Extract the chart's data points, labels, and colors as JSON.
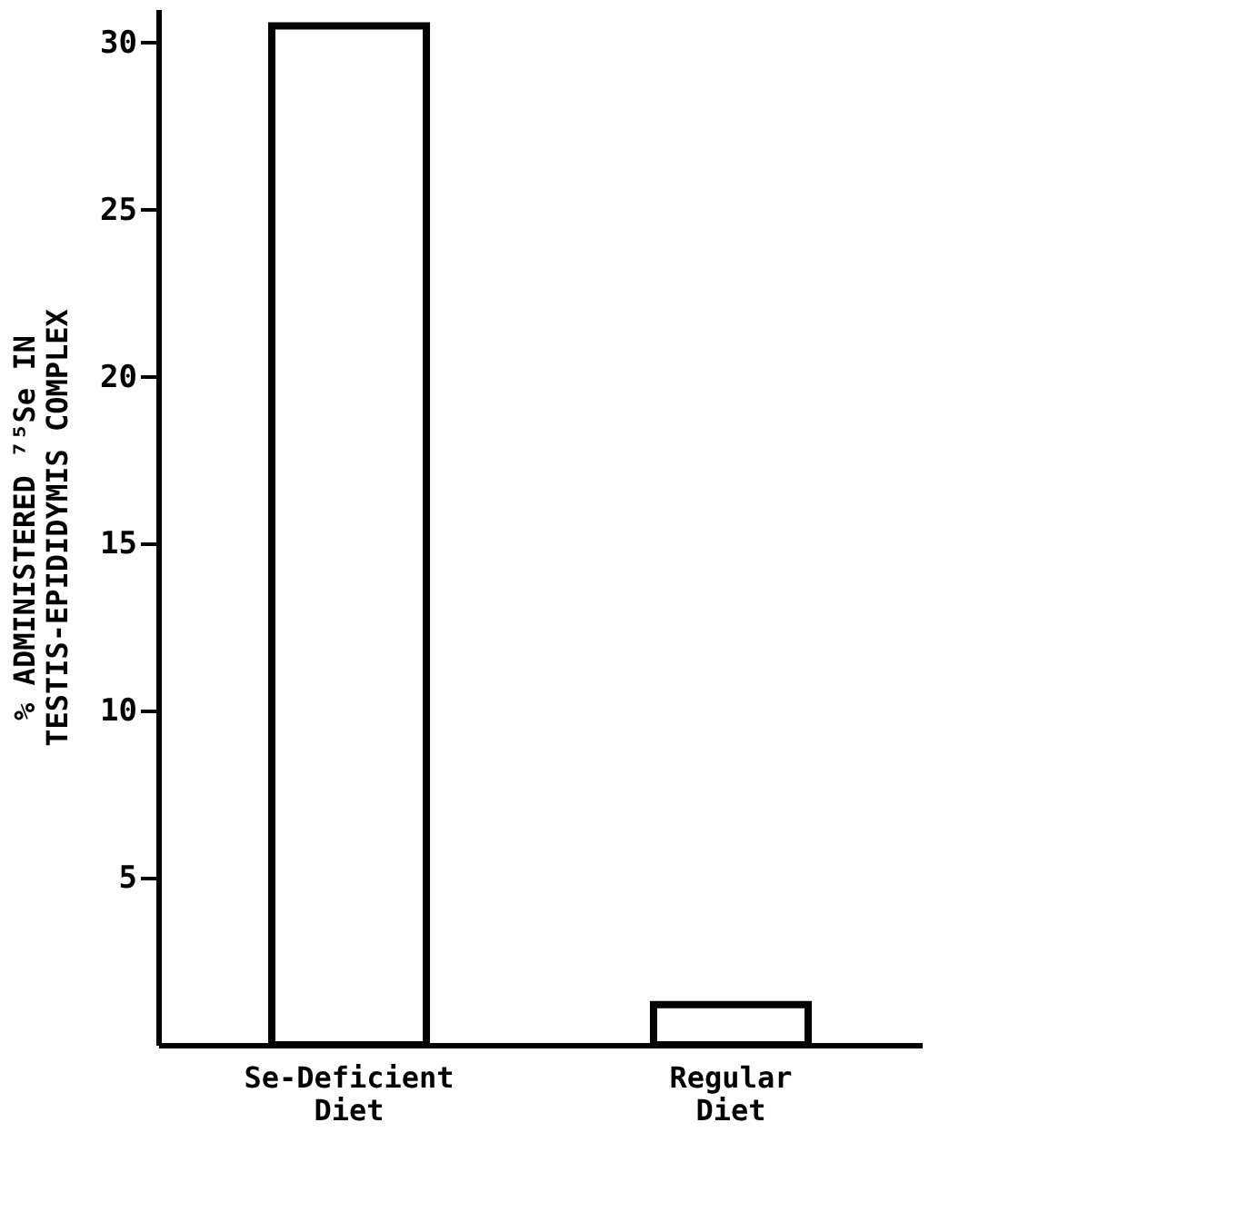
{
  "chart_data": {
    "type": "bar",
    "categories": [
      "Se-Deficient Diet",
      "Regular Diet"
    ],
    "values": [
      30.5,
      1.2
    ],
    "color": "#000000",
    "ylabel": "% ADMINISTERED ⁷⁵Se IN\nTESTIS-EPIDIDYMIS COMPLEX",
    "ylim": [
      0,
      31
    ],
    "yticks": [
      5,
      10,
      15,
      20,
      25,
      30
    ]
  }
}
